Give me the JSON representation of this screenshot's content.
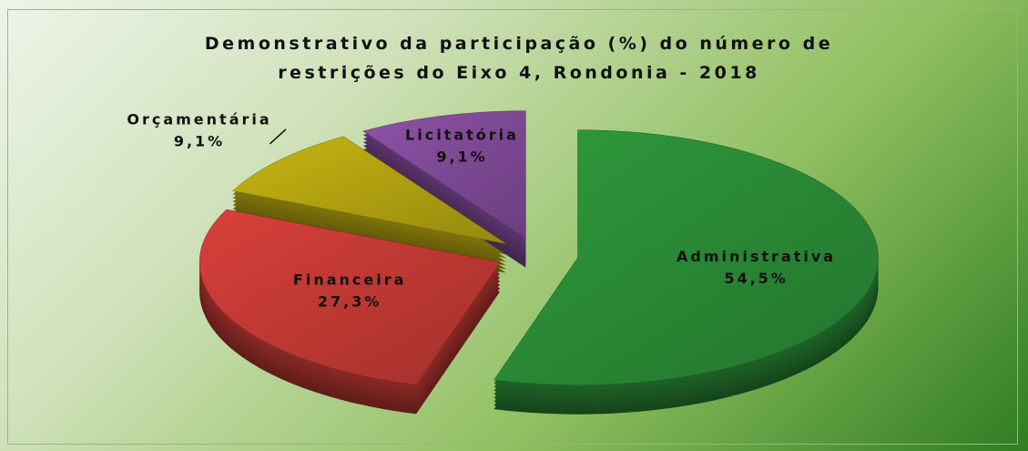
{
  "chart_data": {
    "type": "pie",
    "title": "Demonstrativo da participação (%) do número de restrições do Eixo 4, Rondonia - 2018",
    "categories": [
      "Administrativa",
      "Financeira",
      "Orçamentária",
      "Licitatória"
    ],
    "values": [
      54.5,
      27.3,
      9.1,
      9.1
    ],
    "value_labels": [
      "54,5%",
      "27,3%",
      "9,1%",
      "9,1%"
    ],
    "colors": [
      "#2f9a3c",
      "#d8403a",
      "#c7b512",
      "#8e52a8"
    ]
  }
}
